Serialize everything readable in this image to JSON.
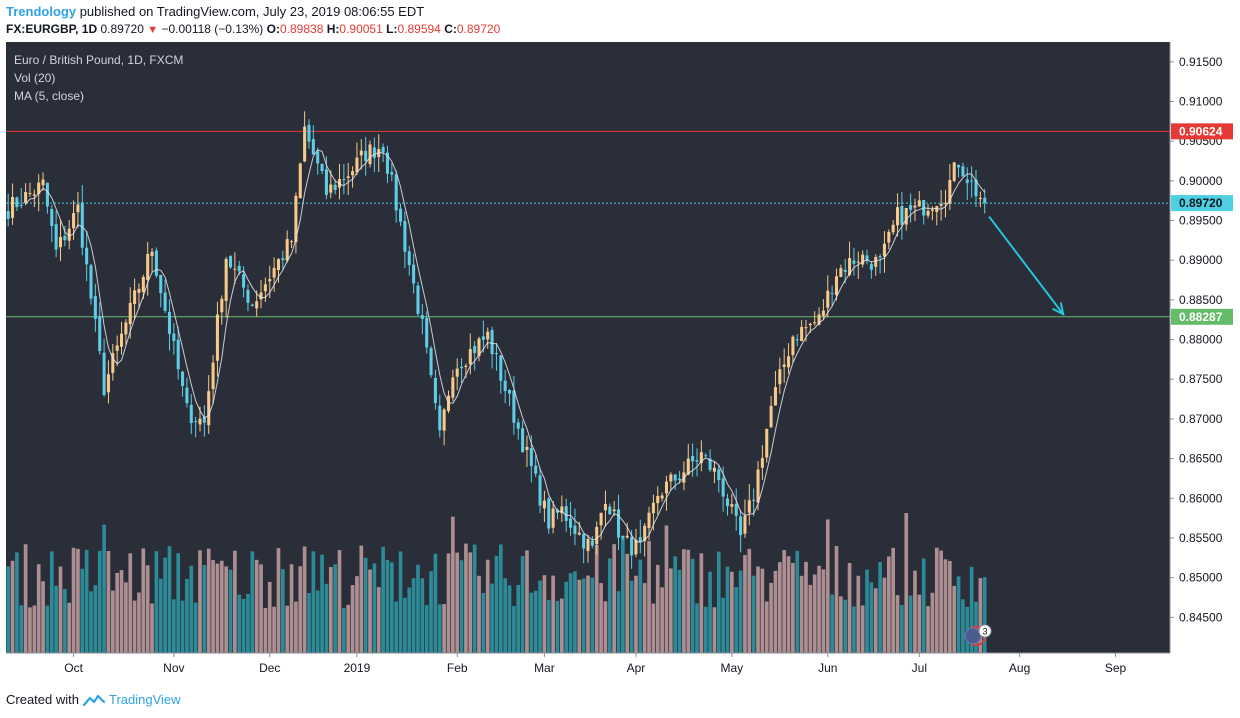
{
  "header": {
    "brand": "Trendology",
    "published_text": "published on TradingView.com, July 23, 2019 08:06:55 EDT",
    "symbol": "FX:EURGBP, 1D",
    "last": "0.89720",
    "change": "−0.00118 (−0.13%)",
    "o_label": "O:",
    "o_val": "0.89838",
    "h_label": "H:",
    "h_val": "0.90051",
    "l_label": "L:",
    "l_val": "0.89594",
    "c_label": "C:",
    "c_val": "0.89720"
  },
  "footer": {
    "created_with": "Created with",
    "tradingview": "TradingView"
  },
  "chart_data": {
    "type": "candlestick",
    "legend": [
      "Euro / British Pound, 1D, FXCM",
      "Vol (20)",
      "MA (5, close)"
    ],
    "y_range": [
      0.8405,
      0.9175
    ],
    "y_ticks": [
      "0.91500",
      "0.91000",
      "0.90500",
      "0.90000",
      "0.89500",
      "0.89000",
      "0.88500",
      "0.88000",
      "0.87500",
      "0.87000",
      "0.86500",
      "0.86000",
      "0.85500",
      "0.85000",
      "0.84500"
    ],
    "y_tick_values": [
      0.915,
      0.91,
      0.905,
      0.9,
      0.895,
      0.89,
      0.885,
      0.88,
      0.875,
      0.87,
      0.865,
      0.86,
      0.855,
      0.85,
      0.845
    ],
    "x_labels": [
      {
        "label": "Oct",
        "bar": 15
      },
      {
        "label": "Nov",
        "bar": 38
      },
      {
        "label": "Dec",
        "bar": 60
      },
      {
        "label": "2019",
        "bar": 80
      },
      {
        "label": "Feb",
        "bar": 103
      },
      {
        "label": "Mar",
        "bar": 123
      },
      {
        "label": "Apr",
        "bar": 144
      },
      {
        "label": "May",
        "bar": 166
      },
      {
        "label": "Jun",
        "bar": 188
      },
      {
        "label": "Jul",
        "bar": 209
      },
      {
        "label": "Aug",
        "bar": 232
      },
      {
        "label": "Sep",
        "bar": 254
      }
    ],
    "total_bars": 267,
    "hlines": [
      {
        "value": 0.90624,
        "label": "0.90624",
        "color": "#e53935",
        "style": "solid"
      },
      {
        "value": 0.8972,
        "label": "0.89720",
        "color": "#4dd0e1",
        "style": "dotted"
      },
      {
        "value": 0.88287,
        "label": "0.88287",
        "color": "#66bb6a",
        "style": "solid"
      }
    ],
    "arrow": {
      "from_bar": 225,
      "from_y": 0.8955,
      "to_bar": 242,
      "to_y": 0.8832,
      "color": "#26c6da"
    },
    "keypoints": [
      [
        0,
        0.8965
      ],
      [
        8,
        0.8995
      ],
      [
        11,
        0.891
      ],
      [
        16,
        0.8965
      ],
      [
        22,
        0.874
      ],
      [
        33,
        0.8915
      ],
      [
        41,
        0.871
      ],
      [
        45,
        0.8695
      ],
      [
        50,
        0.8905
      ],
      [
        56,
        0.8845
      ],
      [
        65,
        0.8925
      ],
      [
        68,
        0.9065
      ],
      [
        73,
        0.8985
      ],
      [
        79,
        0.9015
      ],
      [
        82,
        0.9035
      ],
      [
        86,
        0.9045
      ],
      [
        92,
        0.8895
      ],
      [
        95,
        0.8815
      ],
      [
        99,
        0.8675
      ],
      [
        102,
        0.8765
      ],
      [
        110,
        0.8805
      ],
      [
        113,
        0.8755
      ],
      [
        116,
        0.8705
      ],
      [
        121,
        0.862
      ],
      [
        124,
        0.857
      ],
      [
        127,
        0.8585
      ],
      [
        131,
        0.8555
      ],
      [
        134,
        0.8535
      ],
      [
        137,
        0.8605
      ],
      [
        141,
        0.8545
      ],
      [
        145,
        0.8535
      ],
      [
        149,
        0.8605
      ],
      [
        155,
        0.8635
      ],
      [
        159,
        0.8655
      ],
      [
        163,
        0.8625
      ],
      [
        168,
        0.855
      ],
      [
        171,
        0.8605
      ],
      [
        175,
        0.8715
      ],
      [
        180,
        0.8805
      ],
      [
        186,
        0.8825
      ],
      [
        190,
        0.8885
      ],
      [
        195,
        0.8905
      ],
      [
        200,
        0.8895
      ],
      [
        204,
        0.8955
      ],
      [
        209,
        0.8965
      ],
      [
        215,
        0.8985
      ],
      [
        218,
        0.9025
      ],
      [
        221,
        0.8995
      ],
      [
        224,
        0.8972
      ]
    ],
    "series": [
      {
        "name": "Vol (20)",
        "type": "volume"
      },
      {
        "name": "MA (5, close)",
        "type": "line",
        "color": "#e6e6f0"
      }
    ],
    "colors": {
      "background": "#2a2e39",
      "up": "#f7c98b",
      "down": "#5fcde4",
      "vol_up": "#ad8f92",
      "vol_down": "#2d8a97",
      "text": "#d1d4dc"
    }
  }
}
